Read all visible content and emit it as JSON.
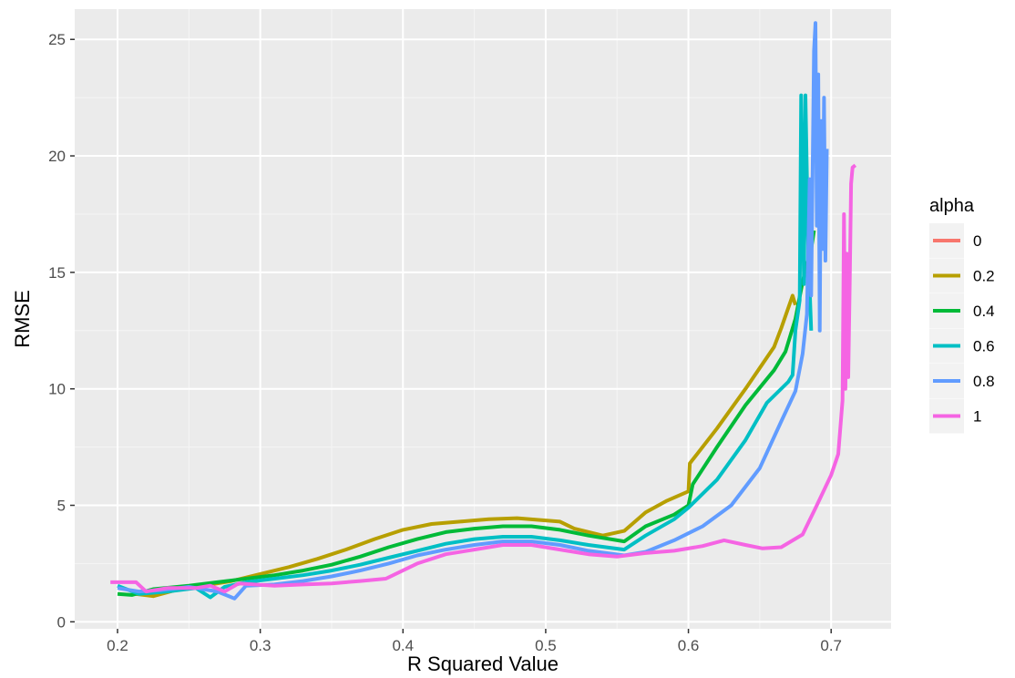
{
  "chart_data": {
    "type": "line",
    "title": "",
    "xlabel": "R Squared Value",
    "ylabel": "RMSE",
    "xlim": [
      0.17,
      0.742
    ],
    "ylim": [
      -0.3,
      26.3
    ],
    "x_ticks": [
      "0.2",
      "0.3",
      "0.4",
      "0.5",
      "0.6",
      "0.7"
    ],
    "y_ticks": [
      "0",
      "5",
      "10",
      "15",
      "20",
      "25"
    ],
    "x_tick_values": [
      0.2,
      0.3,
      0.4,
      0.5,
      0.6,
      0.7
    ],
    "y_tick_values": [
      0,
      5,
      10,
      15,
      20,
      25
    ],
    "grid": true,
    "background": "#EBEBEB",
    "legend": {
      "title": "alpha",
      "position": "right"
    },
    "series": [
      {
        "name": "0",
        "color": "#F8766D",
        "points": []
      },
      {
        "name": "0.2",
        "color": "#B79F00",
        "points": [
          [
            0.212,
            1.2
          ],
          [
            0.225,
            1.1
          ],
          [
            0.24,
            1.35
          ],
          [
            0.26,
            1.55
          ],
          [
            0.28,
            1.75
          ],
          [
            0.3,
            2.05
          ],
          [
            0.32,
            2.35
          ],
          [
            0.34,
            2.7
          ],
          [
            0.36,
            3.1
          ],
          [
            0.38,
            3.55
          ],
          [
            0.4,
            3.95
          ],
          [
            0.42,
            4.2
          ],
          [
            0.44,
            4.3
          ],
          [
            0.46,
            4.4
          ],
          [
            0.48,
            4.45
          ],
          [
            0.5,
            4.35
          ],
          [
            0.51,
            4.3
          ],
          [
            0.52,
            4.0
          ],
          [
            0.54,
            3.7
          ],
          [
            0.555,
            3.9
          ],
          [
            0.57,
            4.7
          ],
          [
            0.585,
            5.2
          ],
          [
            0.6,
            5.6
          ],
          [
            0.601,
            6.8
          ],
          [
            0.62,
            8.3
          ],
          [
            0.64,
            10.0
          ],
          [
            0.66,
            11.8
          ],
          [
            0.665,
            12.6
          ],
          [
            0.673,
            14.0
          ],
          [
            0.675,
            13.6
          ]
        ]
      },
      {
        "name": "0.4",
        "color": "#00BA38",
        "points": [
          [
            0.2,
            1.2
          ],
          [
            0.21,
            1.15
          ],
          [
            0.225,
            1.4
          ],
          [
            0.25,
            1.55
          ],
          [
            0.27,
            1.7
          ],
          [
            0.29,
            1.85
          ],
          [
            0.31,
            2.0
          ],
          [
            0.33,
            2.2
          ],
          [
            0.35,
            2.45
          ],
          [
            0.37,
            2.8
          ],
          [
            0.39,
            3.2
          ],
          [
            0.41,
            3.55
          ],
          [
            0.43,
            3.85
          ],
          [
            0.45,
            4.0
          ],
          [
            0.47,
            4.1
          ],
          [
            0.49,
            4.1
          ],
          [
            0.51,
            3.95
          ],
          [
            0.53,
            3.7
          ],
          [
            0.555,
            3.45
          ],
          [
            0.57,
            4.1
          ],
          [
            0.59,
            4.6
          ],
          [
            0.6,
            5.0
          ],
          [
            0.603,
            5.9
          ],
          [
            0.62,
            7.5
          ],
          [
            0.64,
            9.3
          ],
          [
            0.66,
            10.8
          ],
          [
            0.668,
            11.6
          ],
          [
            0.675,
            13.0
          ],
          [
            0.68,
            14.6
          ],
          [
            0.686,
            16.0
          ],
          [
            0.688,
            16.8
          ]
        ]
      },
      {
        "name": "0.6",
        "color": "#00BFC4",
        "points": [
          [
            0.2,
            1.55
          ],
          [
            0.215,
            1.2
          ],
          [
            0.235,
            1.3
          ],
          [
            0.255,
            1.45
          ],
          [
            0.265,
            1.05
          ],
          [
            0.275,
            1.5
          ],
          [
            0.29,
            1.7
          ],
          [
            0.31,
            1.85
          ],
          [
            0.33,
            2.0
          ],
          [
            0.35,
            2.2
          ],
          [
            0.37,
            2.45
          ],
          [
            0.39,
            2.75
          ],
          [
            0.41,
            3.05
          ],
          [
            0.43,
            3.35
          ],
          [
            0.45,
            3.55
          ],
          [
            0.47,
            3.65
          ],
          [
            0.49,
            3.65
          ],
          [
            0.51,
            3.5
          ],
          [
            0.53,
            3.3
          ],
          [
            0.555,
            3.1
          ],
          [
            0.57,
            3.7
          ],
          [
            0.59,
            4.4
          ],
          [
            0.6,
            4.9
          ],
          [
            0.62,
            6.1
          ],
          [
            0.64,
            7.8
          ],
          [
            0.655,
            9.4
          ],
          [
            0.67,
            10.3
          ],
          [
            0.673,
            10.6
          ],
          [
            0.675,
            12.5
          ],
          [
            0.678,
            13.8
          ],
          [
            0.679,
            22.6
          ],
          [
            0.681,
            14.5
          ],
          [
            0.682,
            22.6
          ],
          [
            0.684,
            16.0
          ],
          [
            0.686,
            12.5
          ]
        ]
      },
      {
        "name": "0.8",
        "color": "#619CFF",
        "points": [
          [
            0.2,
            1.45
          ],
          [
            0.215,
            1.3
          ],
          [
            0.23,
            1.35
          ],
          [
            0.25,
            1.5
          ],
          [
            0.27,
            1.3
          ],
          [
            0.282,
            1.0
          ],
          [
            0.29,
            1.55
          ],
          [
            0.31,
            1.6
          ],
          [
            0.33,
            1.75
          ],
          [
            0.35,
            1.95
          ],
          [
            0.37,
            2.2
          ],
          [
            0.39,
            2.5
          ],
          [
            0.41,
            2.85
          ],
          [
            0.43,
            3.1
          ],
          [
            0.45,
            3.3
          ],
          [
            0.47,
            3.45
          ],
          [
            0.49,
            3.45
          ],
          [
            0.51,
            3.3
          ],
          [
            0.53,
            3.05
          ],
          [
            0.555,
            2.85
          ],
          [
            0.57,
            3.0
          ],
          [
            0.59,
            3.5
          ],
          [
            0.61,
            4.1
          ],
          [
            0.63,
            5.0
          ],
          [
            0.65,
            6.6
          ],
          [
            0.665,
            8.6
          ],
          [
            0.675,
            9.9
          ],
          [
            0.68,
            11.5
          ],
          [
            0.683,
            13.2
          ],
          [
            0.685,
            19.0
          ],
          [
            0.686,
            14.0
          ],
          [
            0.688,
            24.5
          ],
          [
            0.689,
            25.7
          ],
          [
            0.69,
            17.0
          ],
          [
            0.691,
            23.5
          ],
          [
            0.692,
            12.5
          ],
          [
            0.693,
            21.5
          ],
          [
            0.694,
            16.0
          ],
          [
            0.695,
            22.5
          ],
          [
            0.696,
            15.5
          ],
          [
            0.697,
            20.3
          ]
        ]
      },
      {
        "name": "1",
        "color": "#F564E3",
        "points": [
          [
            0.195,
            1.7
          ],
          [
            0.213,
            1.7
          ],
          [
            0.22,
            1.3
          ],
          [
            0.235,
            1.45
          ],
          [
            0.255,
            1.45
          ],
          [
            0.265,
            1.55
          ],
          [
            0.275,
            1.3
          ],
          [
            0.285,
            1.65
          ],
          [
            0.31,
            1.55
          ],
          [
            0.33,
            1.6
          ],
          [
            0.35,
            1.65
          ],
          [
            0.37,
            1.75
          ],
          [
            0.388,
            1.85
          ],
          [
            0.41,
            2.5
          ],
          [
            0.43,
            2.9
          ],
          [
            0.45,
            3.1
          ],
          [
            0.47,
            3.3
          ],
          [
            0.49,
            3.3
          ],
          [
            0.51,
            3.1
          ],
          [
            0.53,
            2.9
          ],
          [
            0.55,
            2.8
          ],
          [
            0.57,
            2.95
          ],
          [
            0.59,
            3.05
          ],
          [
            0.61,
            3.25
          ],
          [
            0.625,
            3.5
          ],
          [
            0.64,
            3.3
          ],
          [
            0.652,
            3.15
          ],
          [
            0.665,
            3.2
          ],
          [
            0.68,
            3.75
          ],
          [
            0.69,
            5.0
          ],
          [
            0.7,
            6.3
          ],
          [
            0.705,
            7.2
          ],
          [
            0.708,
            9.5
          ],
          [
            0.709,
            17.5
          ],
          [
            0.71,
            10.0
          ],
          [
            0.711,
            15.8
          ],
          [
            0.712,
            10.5
          ],
          [
            0.713,
            14.5
          ],
          [
            0.714,
            18.8
          ],
          [
            0.715,
            19.5
          ],
          [
            0.717,
            19.6
          ]
        ]
      }
    ]
  }
}
